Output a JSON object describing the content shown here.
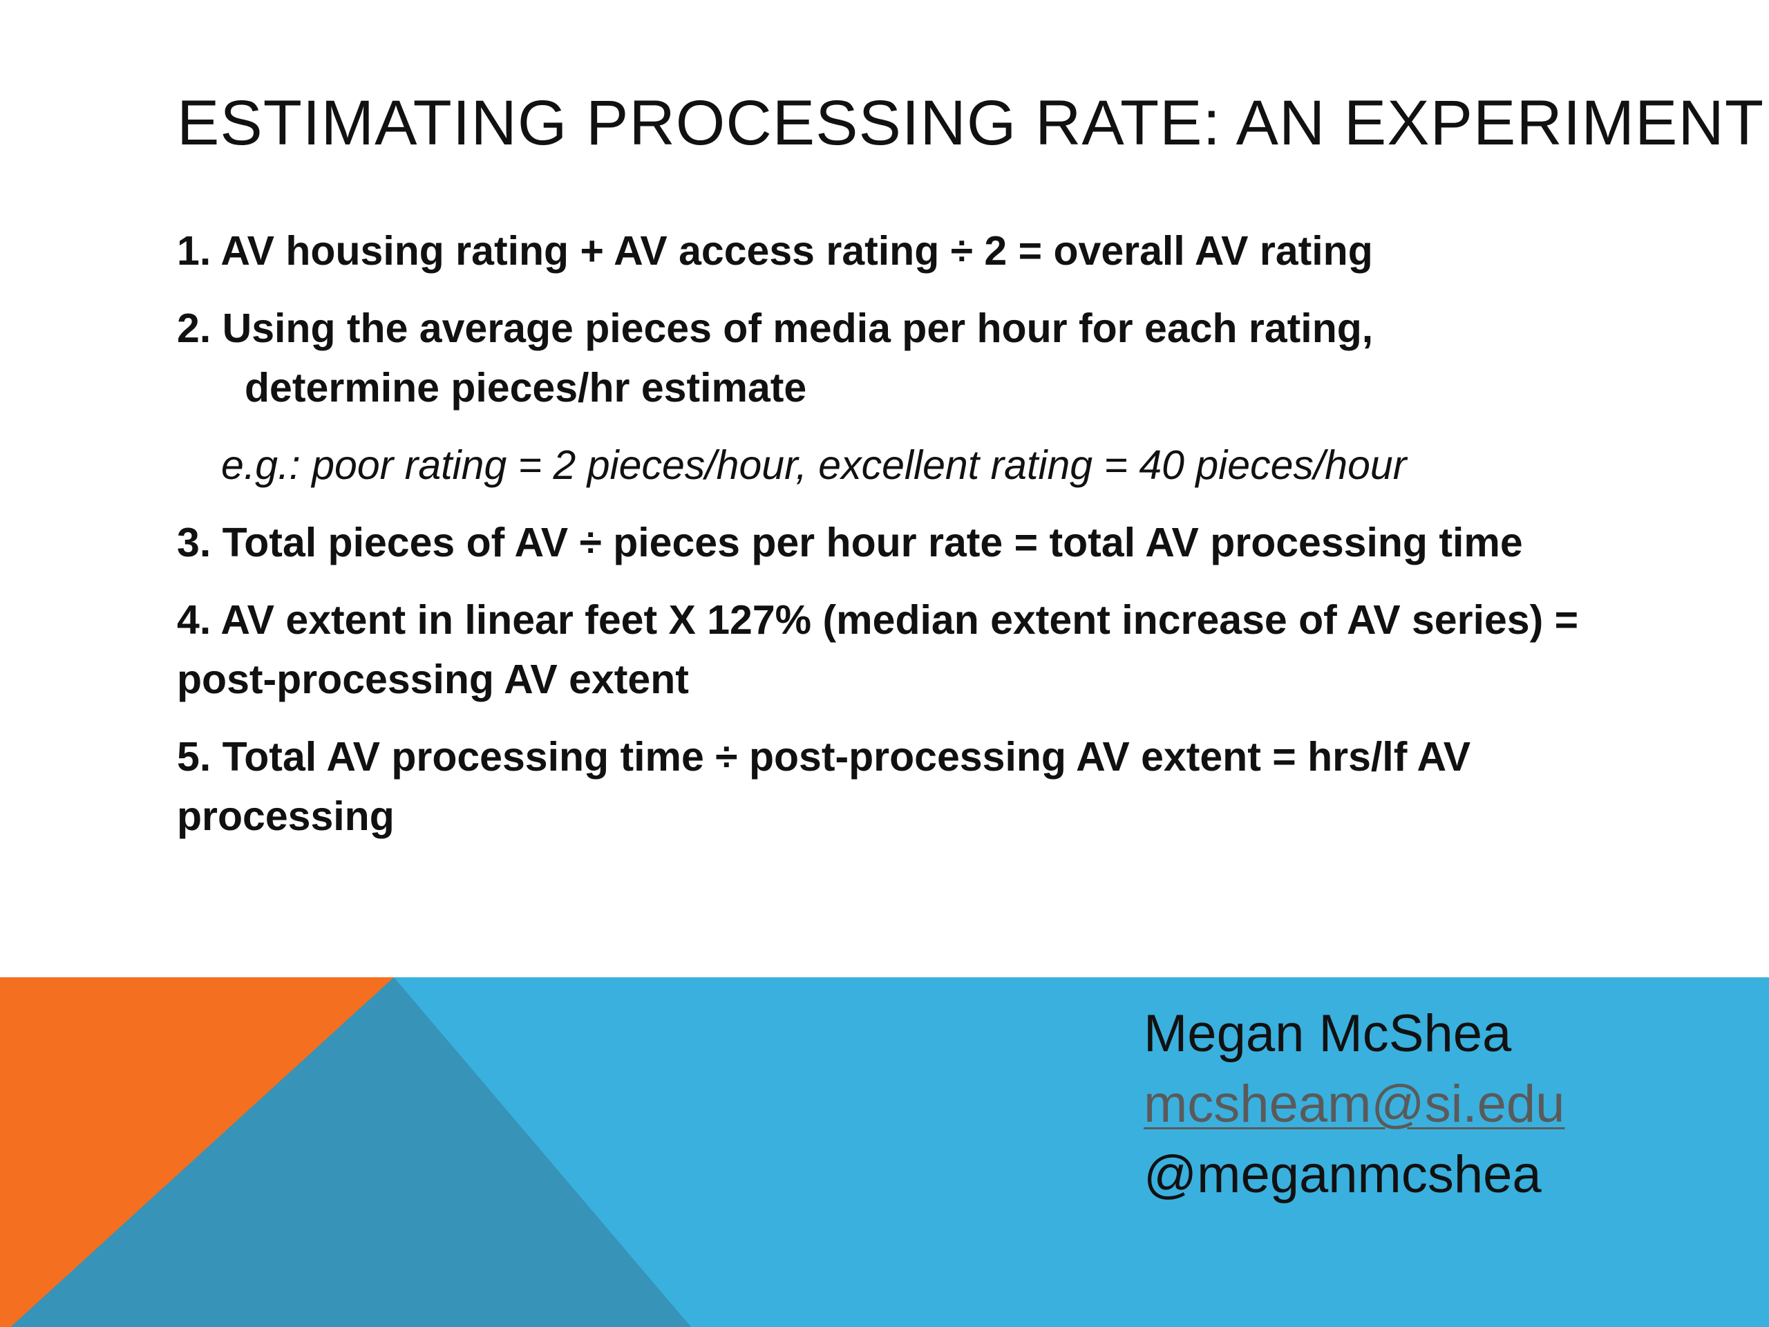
{
  "slide": {
    "title": "ESTIMATING PROCESSING RATE: AN EXPERIMENT",
    "steps": [
      {
        "text": "1. AV housing rating + AV access rating ÷ 2 = overall AV rating"
      },
      {
        "text": "2. Using the average pieces of media per hour for each rating,",
        "continuation": "determine pieces/hr estimate"
      },
      {
        "text": "3. Total pieces of AV ÷ pieces per hour rate = total AV processing time"
      },
      {
        "text": "4. AV extent  in linear feet X  127% (median extent increase of AV series) = post-processing AV extent"
      },
      {
        "text": "5. Total AV processing time ÷ post-processing AV extent = hrs/lf  AV processing"
      }
    ],
    "example": "e.g.: poor rating = 2 pieces/hour, excellent rating = 40 pieces/hour"
  },
  "contact": {
    "name": "Megan McShea",
    "email": "mcsheam@si.edu",
    "handle": "@meganmcshea"
  },
  "colors": {
    "orange": "#f46f1f",
    "light_blue": "#3ab0de",
    "dark_blue": "#3793b8"
  }
}
